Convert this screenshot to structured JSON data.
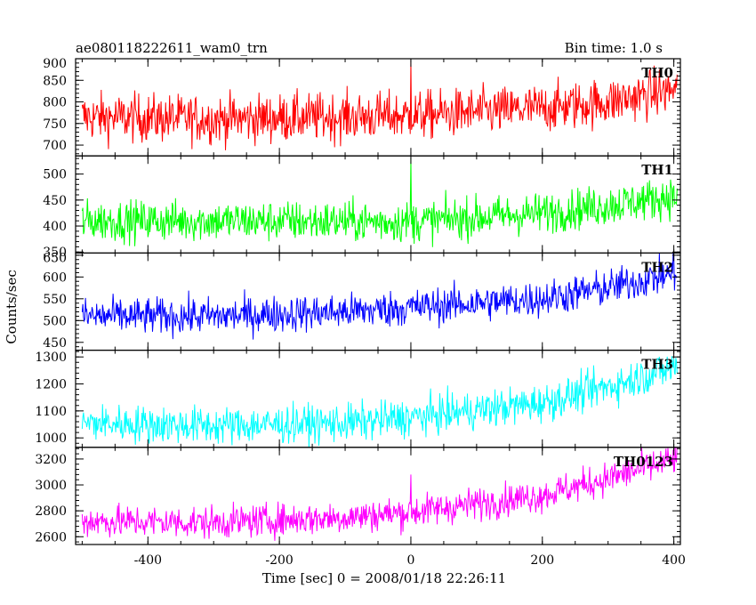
{
  "chart_data": {
    "type": "line",
    "title": "ae080118222611_wam0_trn",
    "bin_time": "Bin time: 1.0 s",
    "xlabel": "Time [sec] 0 = 2008/01/18 22:26:11",
    "ylabel": "Counts/sec",
    "xlim": [
      -510,
      410
    ],
    "x_ticks": [
      -400,
      -200,
      0,
      200,
      400
    ],
    "x_start": -500,
    "x_end": 405,
    "x_step": 1,
    "grid": false,
    "legend": "none",
    "panels": [
      {
        "name": "TH0",
        "color": "#ff0000",
        "ylim": [
          675,
          900
        ],
        "yticks": [
          700,
          750,
          800,
          850,
          900
        ],
        "knots": [
          [
            -500,
            765
          ],
          [
            -300,
            760
          ],
          [
            0,
            768
          ],
          [
            200,
            785
          ],
          [
            300,
            800
          ],
          [
            405,
            830
          ]
        ],
        "noise": 40,
        "spike": {
          "x": 0,
          "value": 898
        }
      },
      {
        "name": "TH1",
        "color": "#00ff00",
        "ylim": [
          348,
          535
        ],
        "yticks": [
          350,
          400,
          450,
          500
        ],
        "knots": [
          [
            -500,
            410
          ],
          [
            -300,
            410
          ],
          [
            0,
            408
          ],
          [
            200,
            425
          ],
          [
            300,
            440
          ],
          [
            405,
            458
          ]
        ],
        "noise": 28,
        "spike": {
          "x": 0,
          "value": 532
        }
      },
      {
        "name": "TH2",
        "color": "#0000ff",
        "ylim": [
          432,
          655
        ],
        "yticks": [
          450,
          500,
          550,
          600,
          650
        ],
        "knots": [
          [
            -500,
            510
          ],
          [
            -300,
            510
          ],
          [
            -100,
            520
          ],
          [
            0,
            530
          ],
          [
            200,
            550
          ],
          [
            300,
            575
          ],
          [
            405,
            610
          ]
        ],
        "noise": 30,
        "spike": {
          "x": 400,
          "value": 650
        }
      },
      {
        "name": "TH3",
        "color": "#00ffff",
        "ylim": [
          965,
          1325
        ],
        "yticks": [
          1000,
          1100,
          1200,
          1300
        ],
        "knots": [
          [
            -500,
            1055
          ],
          [
            -300,
            1045
          ],
          [
            -100,
            1055
          ],
          [
            0,
            1075
          ],
          [
            200,
            1130
          ],
          [
            300,
            1190
          ],
          [
            405,
            1265
          ]
        ],
        "noise": 50,
        "spike": null
      },
      {
        "name": "TH0123",
        "color": "#ff00ff",
        "ylim": [
          2540,
          3290
        ],
        "yticks": [
          2600,
          2800,
          3000,
          3200
        ],
        "knots": [
          [
            -500,
            2720
          ],
          [
            -300,
            2710
          ],
          [
            -100,
            2750
          ],
          [
            0,
            2790
          ],
          [
            200,
            2920
          ],
          [
            300,
            3050
          ],
          [
            405,
            3200
          ]
        ],
        "noise": 90,
        "spike": {
          "x": 0,
          "value": 3080
        }
      }
    ]
  }
}
